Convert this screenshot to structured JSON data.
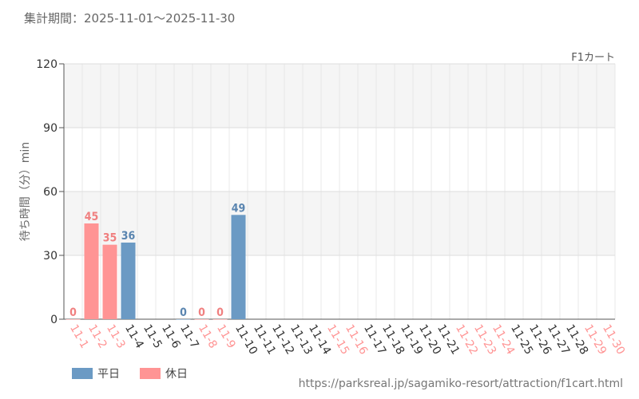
{
  "period_label": "集計期間：2025-11-01〜2025-11-30",
  "source_url": "https://parksreal.jp/sagamiko-resort/attraction/f1cart.html",
  "colors": {
    "weekday": "#6b9ac4",
    "holiday": "#ff9494",
    "weekday_text": "#5a85b0",
    "holiday_text": "#f08080"
  },
  "chart_data": {
    "type": "bar",
    "title": "F1カート",
    "xlabel": "",
    "ylabel": "待ち時間（分）min",
    "ylim": [
      0,
      120
    ],
    "yticks": [
      0,
      30,
      60,
      90,
      120
    ],
    "grid": true,
    "legend_position": "bottom-left",
    "categories": [
      "11-1",
      "11-2",
      "11-3",
      "11-4",
      "11-5",
      "11-6",
      "11-7",
      "11-8",
      "11-9",
      "11-10",
      "11-11",
      "11-12",
      "11-13",
      "11-14",
      "11-15",
      "11-16",
      "11-17",
      "11-18",
      "11-19",
      "11-20",
      "11-21",
      "11-22",
      "11-23",
      "11-24",
      "11-25",
      "11-26",
      "11-27",
      "11-28",
      "11-29",
      "11-30"
    ],
    "day_type": [
      "holiday",
      "holiday",
      "holiday",
      "weekday",
      "weekday",
      "weekday",
      "weekday",
      "holiday",
      "holiday",
      "weekday",
      "weekday",
      "weekday",
      "weekday",
      "weekday",
      "holiday",
      "holiday",
      "weekday",
      "weekday",
      "weekday",
      "weekday",
      "weekday",
      "holiday",
      "holiday",
      "holiday",
      "weekday",
      "weekday",
      "weekday",
      "weekday",
      "holiday",
      "holiday"
    ],
    "values": [
      0,
      45,
      35,
      36,
      null,
      null,
      0,
      0,
      0,
      49,
      null,
      null,
      null,
      null,
      null,
      null,
      null,
      null,
      null,
      null,
      null,
      null,
      null,
      null,
      null,
      null,
      null,
      null,
      null,
      null
    ],
    "series": [
      {
        "name": "平日"
      },
      {
        "name": "休日"
      }
    ]
  }
}
